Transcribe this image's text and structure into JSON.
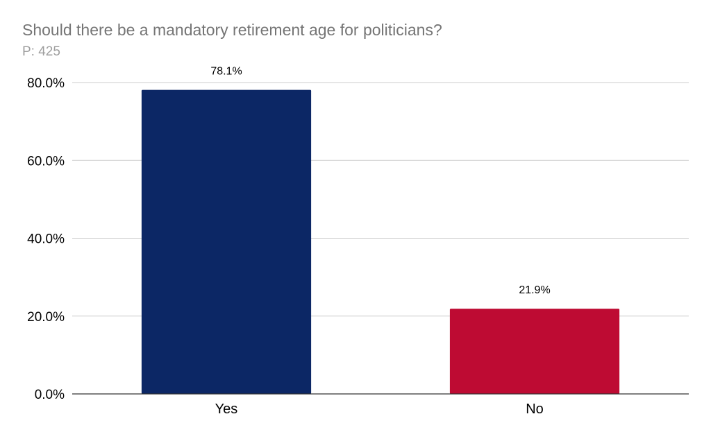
{
  "chart_data": {
    "type": "bar",
    "title": "Should there be a mandatory retirement age for politicians?",
    "subtitle": "P: 425",
    "categories": [
      "Yes",
      "No"
    ],
    "values": [
      78.1,
      21.9
    ],
    "data_labels": [
      "78.1%",
      "21.9%"
    ],
    "colors": [
      "#0c2765",
      "#be0b33"
    ],
    "ylim": [
      0,
      80
    ],
    "yticks": [
      0,
      20,
      40,
      60,
      80
    ],
    "ytick_labels": [
      "0.0%",
      "20.0%",
      "40.0%",
      "60.0%",
      "80.0%"
    ],
    "xlabel": "",
    "ylabel": "",
    "grid": true,
    "legend": "none"
  }
}
